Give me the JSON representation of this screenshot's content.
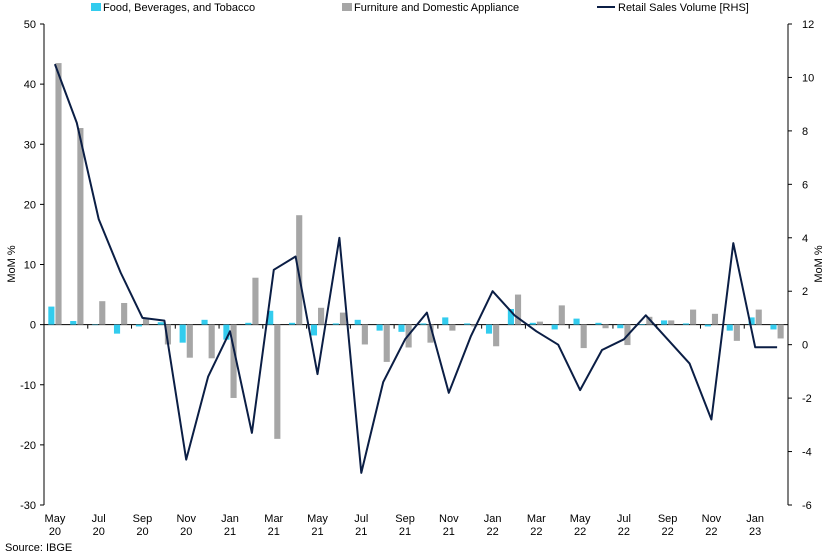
{
  "chart_data": {
    "type": "bar",
    "categories": [
      "May 20",
      "Jun 20",
      "Jul 20",
      "Aug 20",
      "Sep 20",
      "Oct 20",
      "Nov 20",
      "Dec 20",
      "Jan 21",
      "Feb 21",
      "Mar 21",
      "Apr 21",
      "May 21",
      "Jun 21",
      "Jul 21",
      "Aug 21",
      "Sep 21",
      "Oct 21",
      "Nov 21",
      "Dec 21",
      "Jan 22",
      "Feb 22",
      "Mar 22",
      "Apr 22",
      "May 22",
      "Jun 22",
      "Jul 22",
      "Aug 22",
      "Sep 22",
      "Oct 22",
      "Nov 22",
      "Dec 22",
      "Jan 23",
      "Feb 23"
    ],
    "tick_labels": [
      {
        "line1": "May",
        "line2": "20"
      },
      {
        "line1": "Jul",
        "line2": "20"
      },
      {
        "line1": "Sep",
        "line2": "20"
      },
      {
        "line1": "Nov",
        "line2": "20"
      },
      {
        "line1": "Jan",
        "line2": "21"
      },
      {
        "line1": "Mar",
        "line2": "21"
      },
      {
        "line1": "May",
        "line2": "21"
      },
      {
        "line1": "Jul",
        "line2": "21"
      },
      {
        "line1": "Sep",
        "line2": "21"
      },
      {
        "line1": "Nov",
        "line2": "21"
      },
      {
        "line1": "Jan",
        "line2": "22"
      },
      {
        "line1": "Mar",
        "line2": "22"
      },
      {
        "line1": "May",
        "line2": "22"
      },
      {
        "line1": "Jul",
        "line2": "22"
      },
      {
        "line1": "Sep",
        "line2": "22"
      },
      {
        "line1": "Nov",
        "line2": "22"
      },
      {
        "line1": "Jan",
        "line2": "23"
      }
    ],
    "series": [
      {
        "name": "Food, Beverages, and Tobacco",
        "type": "bar",
        "axis": "left",
        "color": "#33ccee",
        "values": [
          3.0,
          0.6,
          0.0,
          -1.5,
          -0.3,
          0.4,
          -3.0,
          0.8,
          -2.5,
          0.3,
          2.3,
          0.3,
          -1.8,
          0.2,
          0.8,
          -1.0,
          -1.2,
          0.2,
          1.2,
          0.2,
          -1.5,
          2.6,
          0.3,
          -0.8,
          1.0,
          0.3,
          -0.6,
          0.1,
          0.7,
          0.2,
          -0.3,
          -1.0,
          1.2,
          -0.8
        ]
      },
      {
        "name": "Furniture and Domestic Appliance",
        "type": "bar",
        "axis": "left",
        "color": "#a6a6a6",
        "values": [
          43.5,
          32.7,
          3.9,
          3.6,
          1.0,
          -3.3,
          -5.5,
          -5.6,
          -12.2,
          7.8,
          -19.0,
          18.2,
          2.8,
          2.0,
          -3.3,
          -6.2,
          -3.8,
          -3.0,
          -1.0,
          -0.3,
          -3.6,
          5.0,
          0.5,
          3.2,
          -3.9,
          -0.6,
          -3.4,
          1.3,
          0.7,
          2.5,
          1.8,
          -2.7,
          2.5,
          -2.3
        ]
      },
      {
        "name": "Retail Sales Volume [RHS]",
        "type": "line",
        "axis": "right",
        "color": "#0b1e45",
        "values": [
          10.5,
          8.3,
          4.7,
          2.7,
          1.0,
          0.9,
          -4.3,
          -1.2,
          0.5,
          -3.3,
          2.8,
          3.3,
          -1.1,
          4.0,
          -4.8,
          -1.4,
          0.2,
          1.2,
          -1.8,
          0.3,
          2.0,
          1.1,
          0.5,
          0.0,
          -1.7,
          -0.2,
          0.2,
          1.1,
          0.2,
          -0.7,
          -2.8,
          3.8,
          -0.1,
          -0.1
        ]
      }
    ],
    "ylabel": "MoM %",
    "y2label": "MoM %",
    "ylim": [
      -30,
      50
    ],
    "y2lim": [
      -6,
      12
    ],
    "yticks": [
      -30,
      -20,
      -10,
      0,
      10,
      20,
      30,
      40,
      50
    ],
    "y2ticks": [
      -6,
      -4,
      -2,
      0,
      2,
      4,
      6,
      8,
      10,
      12
    ],
    "grid": false,
    "legend_position": "top",
    "source": "Source: IBGE"
  }
}
